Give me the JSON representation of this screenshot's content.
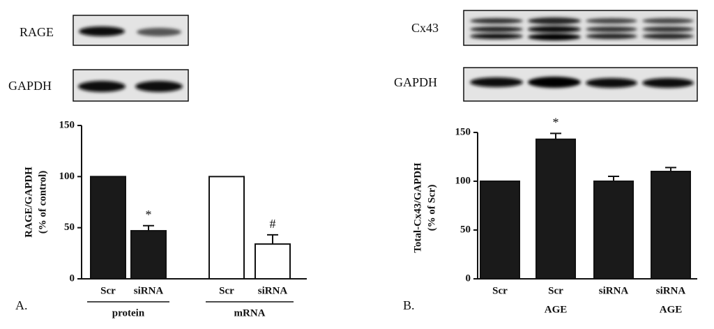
{
  "panels": [
    {
      "label": "A.",
      "blot_labels": [
        "RAGE",
        "GAPDH"
      ]
    },
    {
      "label": "B.",
      "blot_labels": [
        "Cx43",
        "GAPDH"
      ]
    }
  ],
  "chart_data": [
    {
      "type": "bar",
      "y_label": [
        "RAGE/GAPDH",
        "(% of control)"
      ],
      "ylim": [
        0,
        150
      ],
      "yticks": [
        0,
        50,
        100,
        150
      ],
      "groups": [
        {
          "name": "protein",
          "categories": [
            "Scr",
            "siRNA"
          ],
          "values": [
            100,
            47
          ],
          "errors": [
            null,
            5
          ],
          "annotations": [
            null,
            "*"
          ],
          "color": "#1a1a1a"
        },
        {
          "name": "mRNA",
          "categories": [
            "Scr",
            "siRNA"
          ],
          "values": [
            100,
            34
          ],
          "errors": [
            null,
            9
          ],
          "annotations": [
            null,
            "#"
          ],
          "color": "#ffffff"
        }
      ]
    },
    {
      "type": "bar",
      "y_label": [
        "Total-Cx43/GAPDH",
        "(% of Scr)"
      ],
      "ylim": [
        0,
        150
      ],
      "yticks": [
        0,
        50,
        100,
        150
      ],
      "categories": [
        "Scr",
        "Scr",
        "siRNA",
        "siRNA"
      ],
      "treatment": [
        null,
        "AGE",
        null,
        "AGE"
      ],
      "values": [
        100,
        143,
        100,
        110
      ],
      "errors": [
        null,
        6,
        5,
        4
      ],
      "annotations": [
        null,
        "*",
        null,
        null
      ],
      "color": "#1a1a1a"
    }
  ]
}
